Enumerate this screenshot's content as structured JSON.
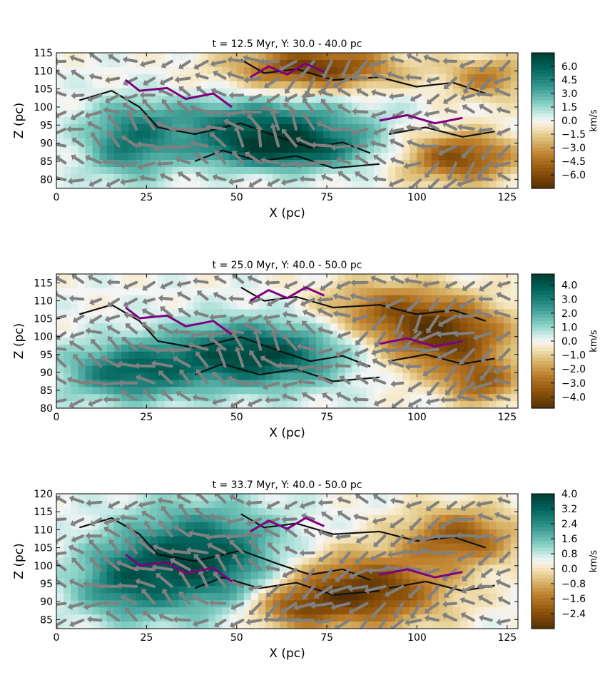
{
  "chart_data": [
    {
      "type": "heatmap",
      "title": "t = 12.5 Myr, Y: 30.0 - 40.0 pc",
      "xlabel": "X (pc)",
      "ylabel": "Z (pc)",
      "xlim": [
        0,
        128
      ],
      "ylim": [
        77.5,
        115
      ],
      "xticks": [
        "0",
        "25",
        "50",
        "75",
        "100",
        "125"
      ],
      "xtick_values": [
        0,
        25,
        50,
        75,
        100,
        125
      ],
      "yticks": [
        "80",
        "85",
        "90",
        "95",
        "100",
        "105",
        "110",
        "115"
      ],
      "ytick_values": [
        80,
        85,
        90,
        95,
        100,
        105,
        110,
        115
      ],
      "colorbar": {
        "label": "km/s",
        "range": [
          -7.5,
          7.5
        ],
        "ticks": [
          "6.0",
          "4.5",
          "3.0",
          "1.5",
          "0.0",
          "−1.5",
          "−3.0",
          "−4.5",
          "−6.0"
        ],
        "tick_values": [
          6.0,
          4.5,
          3.0,
          1.5,
          0.0,
          -1.5,
          -3.0,
          -4.5,
          -6.0
        ]
      },
      "overlays": [
        "velocity vectors (gray)",
        "density contours (black)",
        "dense gas contours (purple)"
      ]
    },
    {
      "type": "heatmap",
      "title": "t = 25.0 Myr, Y: 40.0 - 50.0 pc",
      "xlabel": "X (pc)",
      "ylabel": "Z (pc)",
      "xlim": [
        0,
        128
      ],
      "ylim": [
        80,
        117.5
      ],
      "xticks": [
        "0",
        "25",
        "50",
        "75",
        "100",
        "125"
      ],
      "xtick_values": [
        0,
        25,
        50,
        75,
        100,
        125
      ],
      "yticks": [
        "80",
        "85",
        "90",
        "95",
        "100",
        "105",
        "110",
        "115"
      ],
      "ytick_values": [
        80,
        85,
        90,
        95,
        100,
        105,
        110,
        115
      ],
      "colorbar": {
        "label": "km/s",
        "range": [
          -4.8,
          4.8
        ],
        "ticks": [
          "4.0",
          "3.0",
          "2.0",
          "1.0",
          "0.0",
          "−1.0",
          "−2.0",
          "−3.0",
          "−4.0"
        ],
        "tick_values": [
          4.0,
          3.0,
          2.0,
          1.0,
          0.0,
          -1.0,
          -2.0,
          -3.0,
          -4.0
        ]
      },
      "overlays": [
        "velocity vectors (gray)",
        "density contours (black)",
        "dense gas contours (purple)"
      ]
    },
    {
      "type": "heatmap",
      "title": "t = 33.7 Myr, Y: 40.0 - 50.0 pc",
      "xlabel": "X (pc)",
      "ylabel": "Z (pc)",
      "xlim": [
        0,
        128
      ],
      "ylim": [
        82.5,
        120
      ],
      "xticks": [
        "0",
        "25",
        "50",
        "75",
        "100",
        "125"
      ],
      "xtick_values": [
        0,
        25,
        50,
        75,
        100,
        125
      ],
      "yticks": [
        "85",
        "90",
        "95",
        "100",
        "105",
        "110",
        "115",
        "120"
      ],
      "ytick_values": [
        85,
        90,
        95,
        100,
        105,
        110,
        115,
        120
      ],
      "colorbar": {
        "label": "km/s",
        "range": [
          -3.2,
          4.0
        ],
        "ticks": [
          "4.0",
          "3.2",
          "2.4",
          "1.6",
          "0.8",
          "0.0",
          "−0.8",
          "−1.6",
          "−2.4"
        ],
        "tick_values": [
          4.0,
          3.2,
          2.4,
          1.6,
          0.8,
          0.0,
          -0.8,
          -1.6,
          -2.4
        ]
      },
      "overlays": [
        "velocity vectors (gray)",
        "density contours (black)",
        "dense gas contours (purple)"
      ]
    }
  ],
  "colors": {
    "positive": "#01665e",
    "neutral": "#f5f5f5",
    "negative": "#8c510a",
    "vectors": "#808080",
    "contours": "#111111",
    "dense_contours": "#800080"
  }
}
